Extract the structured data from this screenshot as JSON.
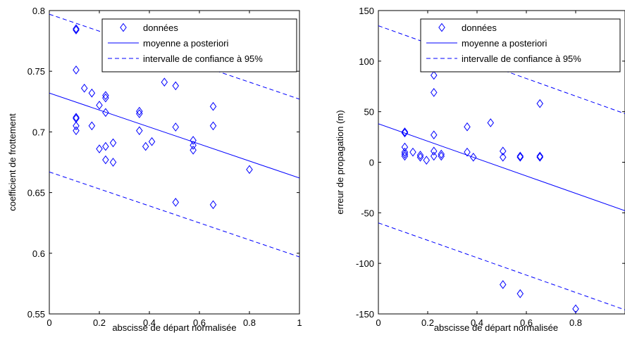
{
  "chart_data": [
    {
      "type": "scatter",
      "xlabel": "abscisse de départ normalisée",
      "ylabel": "coefficient de frottement",
      "xlim": [
        0,
        1
      ],
      "ylim": [
        0.55,
        0.8
      ],
      "xticks": [
        "0",
        "0.2",
        "0.4",
        "0.6",
        "0.8",
        "1"
      ],
      "yticks": [
        "0.55",
        "0.6",
        "0.65",
        "0.7",
        "0.75",
        "0.8"
      ],
      "legend_position": "top-right",
      "legend": {
        "data": "données",
        "mean": "moyenne a posteriori",
        "ci": "intervalle de confiance à 95%"
      },
      "colors": {
        "series": "#0000ff"
      },
      "series": [
        {
          "name": "données",
          "style": "diamond",
          "points": [
            [
              0.107,
              0.785
            ],
            [
              0.107,
              0.784
            ],
            [
              0.107,
              0.751
            ],
            [
              0.107,
              0.712
            ],
            [
              0.107,
              0.711
            ],
            [
              0.107,
              0.705
            ],
            [
              0.107,
              0.701
            ],
            [
              0.14,
              0.736
            ],
            [
              0.17,
              0.732
            ],
            [
              0.17,
              0.705
            ],
            [
              0.2,
              0.722
            ],
            [
              0.2,
              0.686
            ],
            [
              0.225,
              0.73
            ],
            [
              0.225,
              0.728
            ],
            [
              0.225,
              0.716
            ],
            [
              0.225,
              0.688
            ],
            [
              0.225,
              0.677
            ],
            [
              0.255,
              0.691
            ],
            [
              0.255,
              0.675
            ],
            [
              0.36,
              0.717
            ],
            [
              0.36,
              0.715
            ],
            [
              0.36,
              0.701
            ],
            [
              0.385,
              0.688
            ],
            [
              0.41,
              0.692
            ],
            [
              0.46,
              0.741
            ],
            [
              0.505,
              0.738
            ],
            [
              0.505,
              0.704
            ],
            [
              0.505,
              0.642
            ],
            [
              0.575,
              0.693
            ],
            [
              0.575,
              0.689
            ],
            [
              0.575,
              0.685
            ],
            [
              0.655,
              0.721
            ],
            [
              0.655,
              0.705
            ],
            [
              0.655,
              0.64
            ],
            [
              0.8,
              0.669
            ]
          ]
        },
        {
          "name": "moyenne a posteriori",
          "style": "solid",
          "points": [
            [
              0,
              0.732
            ],
            [
              1,
              0.662
            ]
          ]
        },
        {
          "name": "intervalle de confiance à 95%",
          "style": "dashed",
          "points": [
            [
              0,
              0.797
            ],
            [
              1,
              0.727
            ]
          ]
        },
        {
          "name": "intervalle de confiance à 95%",
          "style": "dashed",
          "points": [
            [
              0,
              0.667
            ],
            [
              1,
              0.597
            ]
          ]
        }
      ]
    },
    {
      "type": "scatter",
      "xlabel": "abscisse de départ normalisée",
      "ylabel": "erreur de propagation (m)",
      "xlim": [
        0,
        1
      ],
      "ylim": [
        -150,
        150
      ],
      "xticks": [
        "0",
        "0.2",
        "0.4",
        "0.6",
        "0.8"
      ],
      "yticks": [
        "-150",
        "-100",
        "-50",
        "0",
        "50",
        "100",
        "150"
      ],
      "legend_position": "top-right",
      "legend": {
        "data": "données",
        "mean": "moyenne a posteriori",
        "ci": "intervalle de confiance à 95%"
      },
      "colors": {
        "series": "#0000ff"
      },
      "series": [
        {
          "name": "données",
          "style": "diamond",
          "points": [
            [
              0.107,
              30
            ],
            [
              0.107,
              29
            ],
            [
              0.107,
              15
            ],
            [
              0.107,
              10
            ],
            [
              0.107,
              8
            ],
            [
              0.107,
              6
            ],
            [
              0.14,
              10
            ],
            [
              0.17,
              7
            ],
            [
              0.17,
              5
            ],
            [
              0.195,
              2
            ],
            [
              0.225,
              86
            ],
            [
              0.225,
              69
            ],
            [
              0.225,
              27
            ],
            [
              0.225,
              11
            ],
            [
              0.225,
              6
            ],
            [
              0.255,
              8
            ],
            [
              0.255,
              6
            ],
            [
              0.36,
              35
            ],
            [
              0.36,
              10
            ],
            [
              0.385,
              5
            ],
            [
              0.455,
              39
            ],
            [
              0.505,
              11
            ],
            [
              0.505,
              5
            ],
            [
              0.505,
              -121
            ],
            [
              0.575,
              6
            ],
            [
              0.575,
              5
            ],
            [
              0.575,
              -130
            ],
            [
              0.655,
              58
            ],
            [
              0.655,
              6
            ],
            [
              0.655,
              5
            ],
            [
              0.8,
              -145
            ]
          ]
        },
        {
          "name": "moyenne a posteriori",
          "style": "solid",
          "points": [
            [
              0,
              38
            ],
            [
              1,
              -48
            ]
          ]
        },
        {
          "name": "intervalle de confiance à 95%",
          "style": "dashed",
          "points": [
            [
              0,
              135
            ],
            [
              1,
              48
            ]
          ]
        },
        {
          "name": "intervalle de confiance à 95%",
          "style": "dashed",
          "points": [
            [
              0,
              -60
            ],
            [
              1,
              -146
            ]
          ]
        }
      ]
    }
  ]
}
